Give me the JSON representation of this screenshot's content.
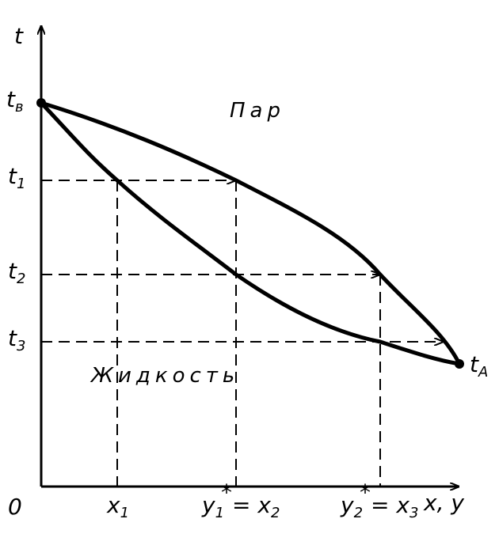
{
  "axes": {
    "y_label": "t",
    "x_label": "x, y",
    "origin": "0"
  },
  "phases": {
    "vapor": "Пар",
    "liquid": "Жидкость"
  },
  "left_labels": [
    {
      "main": "t",
      "sub": "в"
    },
    {
      "main": "t",
      "sub": "1"
    },
    {
      "main": "t",
      "sub": "2"
    },
    {
      "main": "t",
      "sub": "3"
    }
  ],
  "right_label": {
    "main": "t",
    "sub": "A"
  },
  "bottom_labels": [
    {
      "main": "x",
      "sub": "1"
    },
    {
      "main": "y",
      "sub": "1",
      "sup": "*",
      "eq": "= x",
      "eq_sub": "2"
    },
    {
      "main": "y",
      "sub": "2",
      "sup": "*",
      "eq": "= x",
      "eq_sub": "3"
    }
  ]
}
